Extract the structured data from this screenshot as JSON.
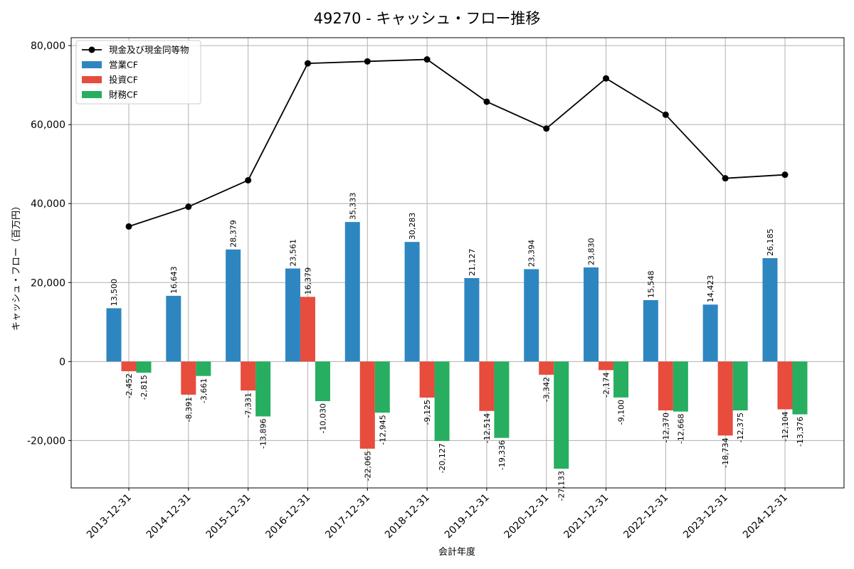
{
  "chart_data": {
    "type": "bar+line",
    "title": "49270 - キャッシュ・フロー推移",
    "xlabel": "会計年度",
    "ylabel": "キャッシュ・フロー（百万円）",
    "ylim": [
      -32000,
      82000
    ],
    "yticks": [
      -20000,
      0,
      20000,
      40000,
      60000,
      80000
    ],
    "ytick_labels": [
      "-20,000",
      "0",
      "20,000",
      "40,000",
      "60,000",
      "80,000"
    ],
    "grid": true,
    "legend_position": "top-left",
    "categories": [
      "2013-12-31",
      "2014-12-31",
      "2015-12-31",
      "2016-12-31",
      "2017-12-31",
      "2018-12-31",
      "2019-12-31",
      "2020-12-31",
      "2021-12-31",
      "2022-12-31",
      "2023-12-31",
      "2024-12-31"
    ],
    "series": [
      {
        "name": "営業CF",
        "kind": "bar",
        "color": "#2e86c1",
        "values": [
          13500,
          16643,
          28379,
          23561,
          35333,
          30283,
          21127,
          23394,
          23830,
          15548,
          14423,
          26185
        ],
        "labels": [
          "13,500",
          "16,643",
          "28,379",
          "23,561",
          "35,333",
          "30,283",
          "21,127",
          "23,394",
          "23,830",
          "15,548",
          "14,423",
          "26,185"
        ]
      },
      {
        "name": "投資CF",
        "kind": "bar",
        "color": "#e74c3c",
        "values": [
          -2452,
          -8391,
          -7331,
          16379,
          -22065,
          -9125,
          -12514,
          -3342,
          -2174,
          -12370,
          -18734,
          -12104
        ],
        "labels": [
          "-2,452",
          "-8,391",
          "-7,331",
          "16,379",
          "-22,065",
          "-9,125",
          "-12,514",
          "-3,342",
          "-2,174",
          "-12,370",
          "-18,734",
          "-12,104"
        ]
      },
      {
        "name": "財務CF",
        "kind": "bar",
        "color": "#27ae60",
        "values": [
          -2815,
          -3661,
          -13896,
          -10030,
          -12945,
          -20127,
          -19336,
          -27133,
          -9100,
          -12668,
          -12375,
          -13376
        ],
        "labels": [
          "-2,815",
          "-3,661",
          "-13,896",
          "-10,030",
          "-12,945",
          "-20,127",
          "-19,336",
          "-27,133",
          "-9,100",
          "-12,668",
          "-12,375",
          "-13,376"
        ]
      },
      {
        "name": "現金及び現金同等物",
        "kind": "line",
        "color": "#000000",
        "values": [
          34200,
          39200,
          45900,
          75500,
          76000,
          76500,
          65800,
          59000,
          71700,
          62500,
          46400,
          47300
        ]
      }
    ]
  }
}
